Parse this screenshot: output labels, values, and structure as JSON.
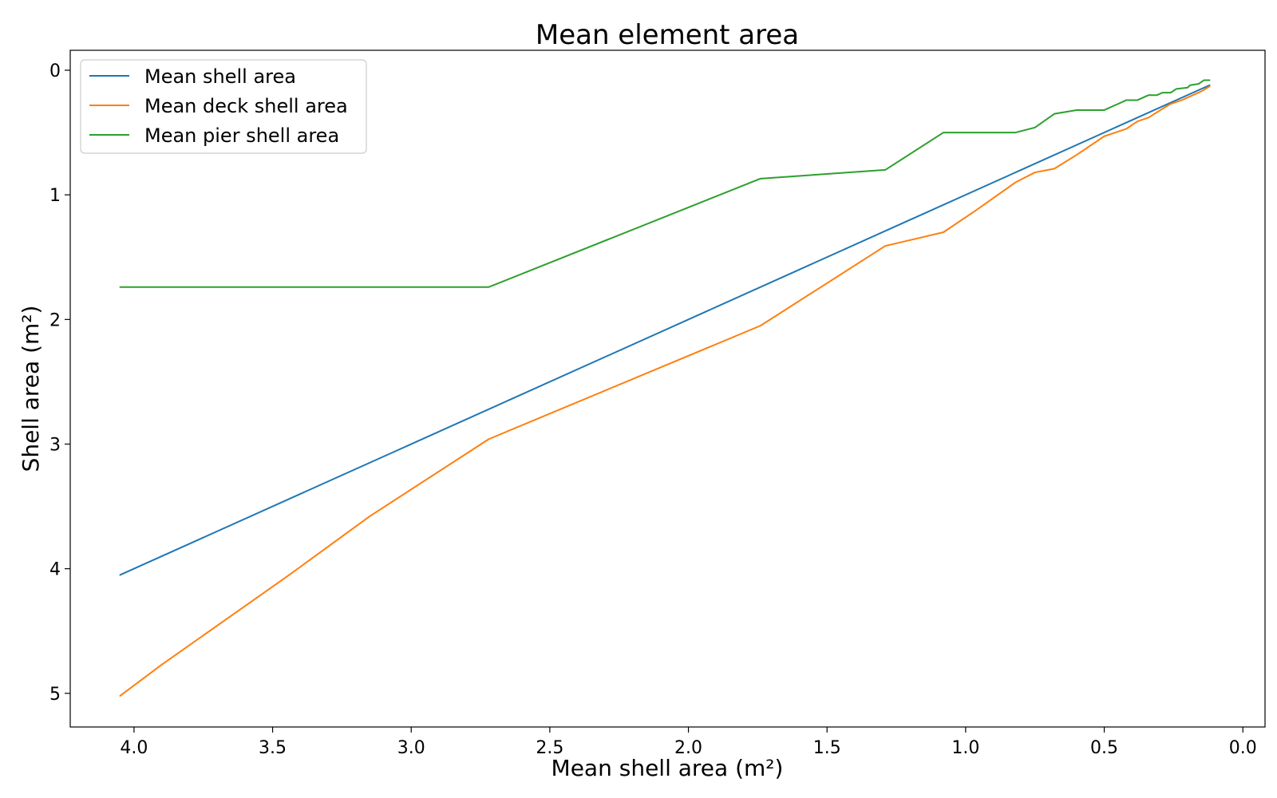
{
  "chart_data": {
    "type": "line",
    "title": "Mean element area",
    "xlabel": "Mean shell area (m²)",
    "ylabel": "Shell area (m²)",
    "xlim": [
      4.23,
      -0.08
    ],
    "ylim": [
      5.27,
      -0.16
    ],
    "x_ticks": [
      4.0,
      3.5,
      3.0,
      2.5,
      2.0,
      1.5,
      1.0,
      0.5,
      0.0
    ],
    "x_tick_labels": [
      "4.0",
      "3.5",
      "3.0",
      "2.5",
      "2.0",
      "1.5",
      "1.0",
      "0.5",
      "0.0"
    ],
    "y_ticks": [
      0,
      1,
      2,
      3,
      4,
      5
    ],
    "y_tick_labels": [
      "0",
      "1",
      "2",
      "3",
      "4",
      "5"
    ],
    "grid": false,
    "legend_position": "top-left",
    "series": [
      {
        "name": "Mean shell area",
        "color": "#1f77b4",
        "points": [
          [
            4.05,
            4.05
          ],
          [
            0.12,
            0.12
          ]
        ]
      },
      {
        "name": "Mean deck shell area",
        "color": "#ff7f0e",
        "points": [
          [
            4.05,
            5.02
          ],
          [
            3.9,
            4.77
          ],
          [
            3.44,
            4.05
          ],
          [
            3.15,
            3.58
          ],
          [
            2.72,
            2.96
          ],
          [
            1.74,
            2.05
          ],
          [
            1.29,
            1.41
          ],
          [
            1.08,
            1.3
          ],
          [
            0.96,
            1.12
          ],
          [
            0.82,
            0.9
          ],
          [
            0.75,
            0.82
          ],
          [
            0.68,
            0.79
          ],
          [
            0.6,
            0.68
          ],
          [
            0.5,
            0.53
          ],
          [
            0.42,
            0.47
          ],
          [
            0.38,
            0.41
          ],
          [
            0.34,
            0.38
          ],
          [
            0.29,
            0.31
          ],
          [
            0.26,
            0.27
          ],
          [
            0.22,
            0.24
          ],
          [
            0.18,
            0.2
          ],
          [
            0.15,
            0.17
          ],
          [
            0.12,
            0.13
          ]
        ]
      },
      {
        "name": "Mean pier shell area",
        "color": "#2ca02c",
        "points": [
          [
            4.05,
            1.74
          ],
          [
            2.72,
            1.74
          ],
          [
            1.74,
            0.87
          ],
          [
            1.29,
            0.8
          ],
          [
            1.08,
            0.5
          ],
          [
            0.82,
            0.5
          ],
          [
            0.75,
            0.46
          ],
          [
            0.68,
            0.35
          ],
          [
            0.6,
            0.32
          ],
          [
            0.5,
            0.32
          ],
          [
            0.42,
            0.24
          ],
          [
            0.38,
            0.24
          ],
          [
            0.34,
            0.2
          ],
          [
            0.31,
            0.2
          ],
          [
            0.29,
            0.18
          ],
          [
            0.26,
            0.18
          ],
          [
            0.24,
            0.15
          ],
          [
            0.2,
            0.14
          ],
          [
            0.19,
            0.12
          ],
          [
            0.16,
            0.11
          ],
          [
            0.14,
            0.08
          ],
          [
            0.12,
            0.08
          ]
        ]
      }
    ]
  }
}
